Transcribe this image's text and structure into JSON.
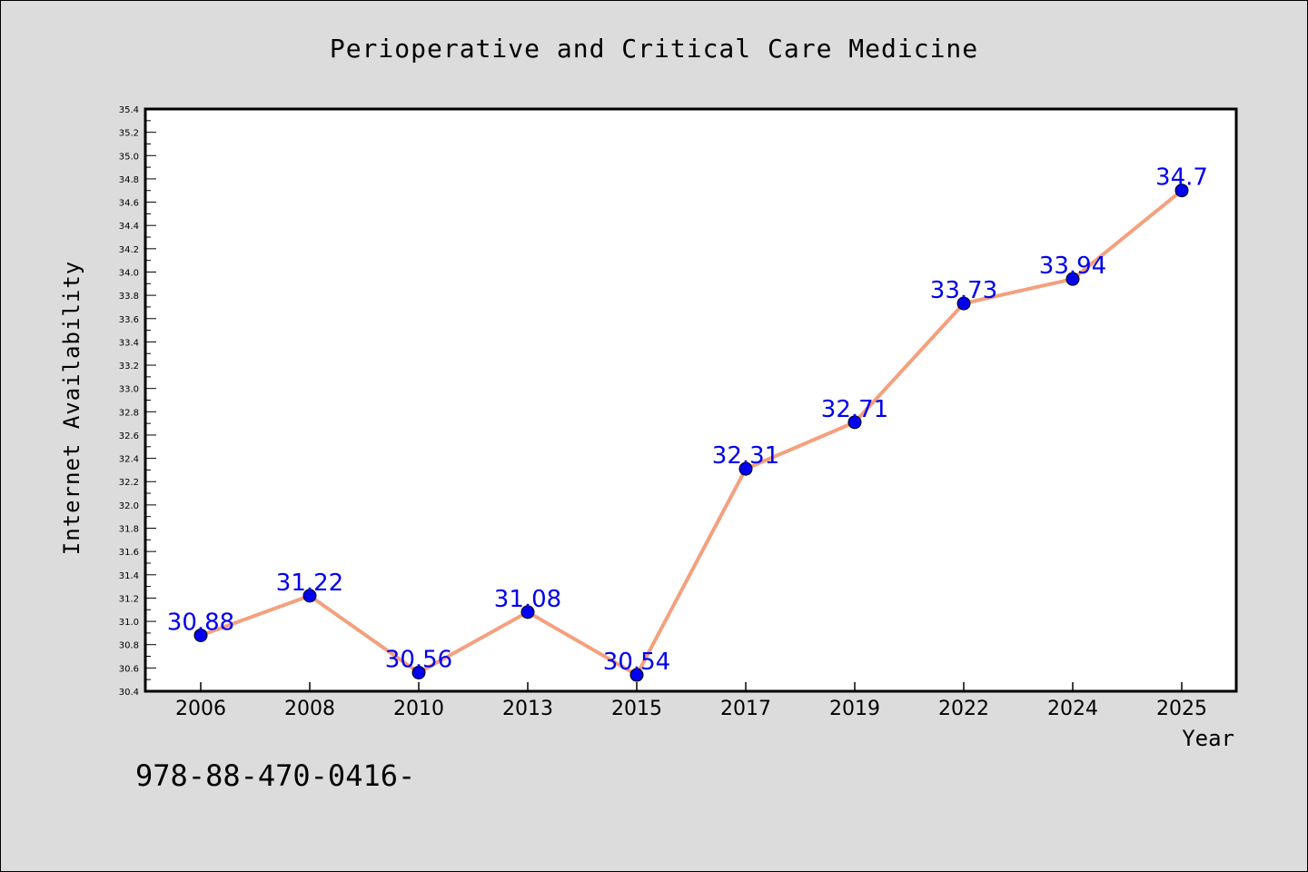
{
  "figure": {
    "footer_text": "978-88-470-0416-"
  },
  "chart_data": {
    "type": "line",
    "title": "Perioperative and Critical Care Medicine",
    "xlabel": "Year",
    "ylabel": "Internet Availability",
    "categories": [
      "2006",
      "2008",
      "2010",
      "2013",
      "2015",
      "2017",
      "2019",
      "2022",
      "2024",
      "2025"
    ],
    "values": [
      30.88,
      31.22,
      30.56,
      31.08,
      30.54,
      32.31,
      32.71,
      33.73,
      33.94,
      34.7
    ],
    "data_labels": [
      "30.88",
      "31.22",
      "30.56",
      "31.08",
      "30.54",
      "32.31",
      "32.71",
      "33.73",
      "33.94",
      "34.7"
    ],
    "ylim": [
      30.4,
      35.4
    ],
    "yticks": [
      "30.4",
      "30.6",
      "30.8",
      "31.0",
      "31.2",
      "31.4",
      "31.6",
      "31.8",
      "32.0",
      "32.2",
      "32.4",
      "32.6",
      "32.8",
      "33.0",
      "33.2",
      "33.4",
      "33.6",
      "33.8",
      "34.0",
      "34.2",
      "34.4",
      "34.6",
      "34.8",
      "35.0",
      "35.2",
      "35.4"
    ],
    "grid": false,
    "legend": "none",
    "colors": {
      "line": "#f4a07e",
      "marker": "#0000ee",
      "label": "#0000ee",
      "plot_bg": "#ffffff",
      "figure_bg": "#dcdcdc"
    }
  }
}
